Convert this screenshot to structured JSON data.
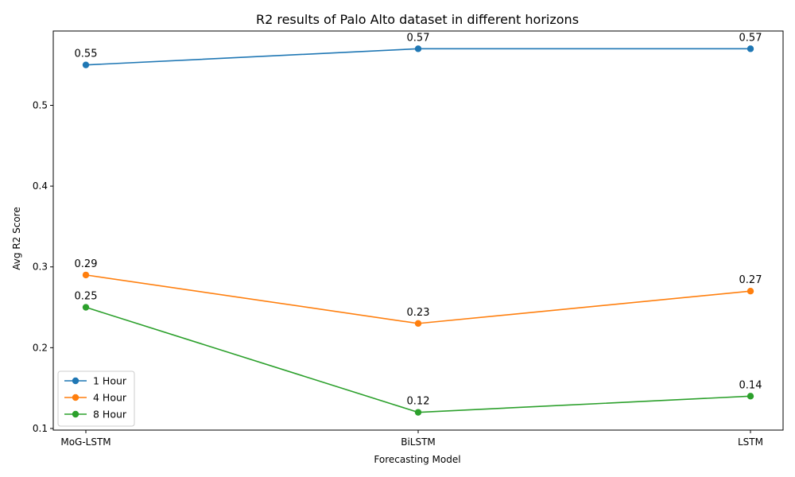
{
  "chart_data": {
    "type": "line",
    "title": "R2 results of Palo Alto dataset in different horizons",
    "xlabel": "Forecasting Model",
    "ylabel": "Avg R2 Score",
    "categories": [
      "MoG-LSTM",
      "BiLSTM",
      "LSTM"
    ],
    "ylim": [
      0.098,
      0.592
    ],
    "yticks": [
      0.1,
      0.2,
      0.3,
      0.4,
      0.5
    ],
    "ytick_labels": [
      "0.1",
      "0.2",
      "0.3",
      "0.4",
      "0.5"
    ],
    "grid": false,
    "legend_position": "bottom-left",
    "series": [
      {
        "name": "1 Hour",
        "values": [
          0.55,
          0.57,
          0.57
        ],
        "labels": [
          "0.55",
          "0.57",
          "0.57"
        ],
        "color": "#1f77b4"
      },
      {
        "name": "4 Hour",
        "values": [
          0.29,
          0.23,
          0.27
        ],
        "labels": [
          "0.29",
          "0.23",
          "0.27"
        ],
        "color": "#ff7f0e"
      },
      {
        "name": "8 Hour",
        "values": [
          0.25,
          0.12,
          0.14
        ],
        "labels": [
          "0.25",
          "0.12",
          "0.14"
        ],
        "color": "#2ca02c"
      }
    ]
  }
}
